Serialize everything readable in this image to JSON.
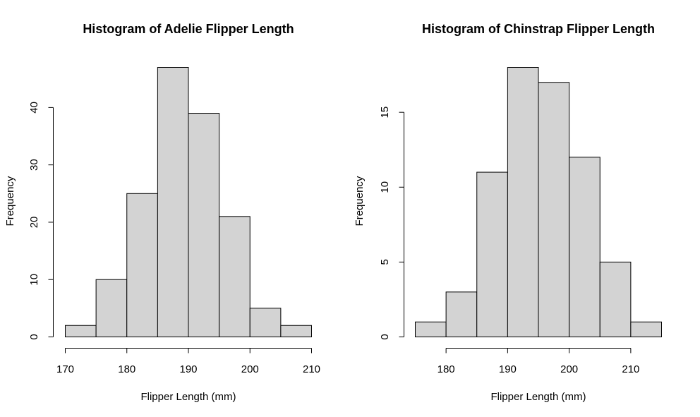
{
  "chart_data": [
    {
      "type": "bar",
      "title": "Histogram of Adelie Flipper Length",
      "xlabel": "Flipper Length (mm)",
      "ylabel": "Frequency",
      "bin_edges": [
        170,
        175,
        180,
        185,
        190,
        195,
        200,
        205,
        210
      ],
      "values": [
        2,
        10,
        25,
        47,
        39,
        21,
        5,
        2
      ],
      "xlim": [
        170,
        210
      ],
      "ylim": [
        0,
        47
      ],
      "x_ticks": [
        170,
        180,
        190,
        200,
        210
      ],
      "y_ticks": [
        0,
        10,
        20,
        30,
        40
      ],
      "bar_color": "#d3d3d3",
      "grid": false
    },
    {
      "type": "bar",
      "title": "Histogram of Chinstrap Flipper Length",
      "xlabel": "Flipper Length (mm)",
      "ylabel": "Frequency",
      "bin_edges": [
        175,
        180,
        185,
        190,
        195,
        200,
        205,
        210,
        215
      ],
      "values": [
        1,
        3,
        11,
        18,
        17,
        12,
        5,
        1
      ],
      "xlim": [
        175,
        215
      ],
      "ylim": [
        0,
        18
      ],
      "x_ticks": [
        180,
        190,
        200,
        210
      ],
      "y_ticks": [
        0,
        5,
        10,
        15
      ],
      "bar_color": "#d3d3d3",
      "grid": false
    }
  ]
}
